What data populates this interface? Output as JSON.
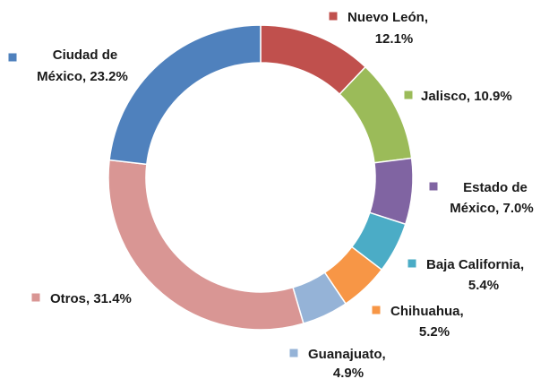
{
  "chart_data": {
    "type": "donut",
    "labels": [
      [
        "Nuevo León,",
        "12.1%"
      ],
      [
        "Jalisco, 10.9%"
      ],
      [
        "Estado de",
        "México, 7.0%"
      ],
      [
        "Baja California,",
        "5.4%"
      ],
      [
        "Chihuahua,",
        "5.2%"
      ],
      [
        "Guanajuato,",
        "4.9%"
      ],
      [
        "Otros, 31.4%"
      ],
      [
        "Ciudad de",
        "México, 23.2%"
      ]
    ],
    "values": [
      12.1,
      10.9,
      7.0,
      5.4,
      5.2,
      4.9,
      31.4,
      23.2
    ],
    "colors": [
      "#c0504d",
      "#9bbb59",
      "#8064a2",
      "#4bacc6",
      "#f79646",
      "#95b3d7",
      "#d99694",
      "#4f81bd"
    ]
  }
}
